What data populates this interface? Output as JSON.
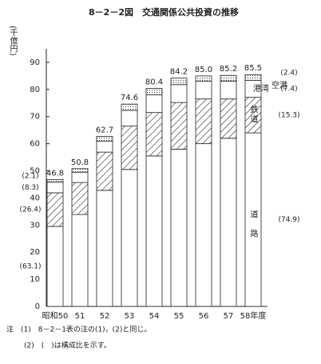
{
  "chart_data": {
    "type": "stacked_bar",
    "title": "8－2－2図　交通関係公共投資の推移",
    "y_label": "(千億円)",
    "categories": [
      "昭和50",
      "51",
      "52",
      "53",
      "54",
      "55",
      "56",
      "57",
      "58年度"
    ],
    "series": [
      {
        "name": "道路",
        "color": "#ffffff",
        "values": [
          29.5,
          33.9,
          42.8,
          50.5,
          55.5,
          58.0,
          60.0,
          62.0,
          64.0
        ]
      },
      {
        "name": "鉄道",
        "color": "hatch",
        "values": [
          12.4,
          11.8,
          14.1,
          16.0,
          16.0,
          17.2,
          16.5,
          14.5,
          13.1
        ]
      },
      {
        "name": "港湾",
        "color": "#ffffff",
        "values": [
          3.9,
          3.8,
          4.0,
          5.8,
          6.5,
          6.6,
          6.5,
          6.6,
          6.3
        ]
      },
      {
        "name": "空港",
        "color": "dots",
        "values": [
          1.0,
          1.3,
          1.8,
          2.3,
          2.4,
          2.4,
          2.0,
          2.1,
          2.1
        ]
      }
    ],
    "totals": {
      "values": [
        46.8,
        50.8,
        62.7,
        74.6,
        80.4,
        84.2,
        85.0,
        85.2,
        85.5
      ],
      "value_labels": [
        "46.8",
        "50.8",
        "62.7",
        "74.6",
        "80.4",
        "84.2",
        "85.0",
        "85.2",
        "85.5"
      ]
    },
    "first_shares": [
      "(63.1)",
      "(26.4)",
      "(8.3)",
      "(2.1)"
    ],
    "last_shares": [
      "(74.9)",
      "(15.3)",
      "(7.4)",
      "(2.4)"
    ],
    "ylim": [
      0,
      95
    ],
    "yticks": [
      0,
      10,
      20,
      30,
      40,
      50,
      60,
      70,
      80,
      90
    ],
    "notes": [
      "注　(1)　8－2－1表の注の(1)，(2)と同じ。",
      "(2)　(　)は構成比を示す。"
    ]
  }
}
